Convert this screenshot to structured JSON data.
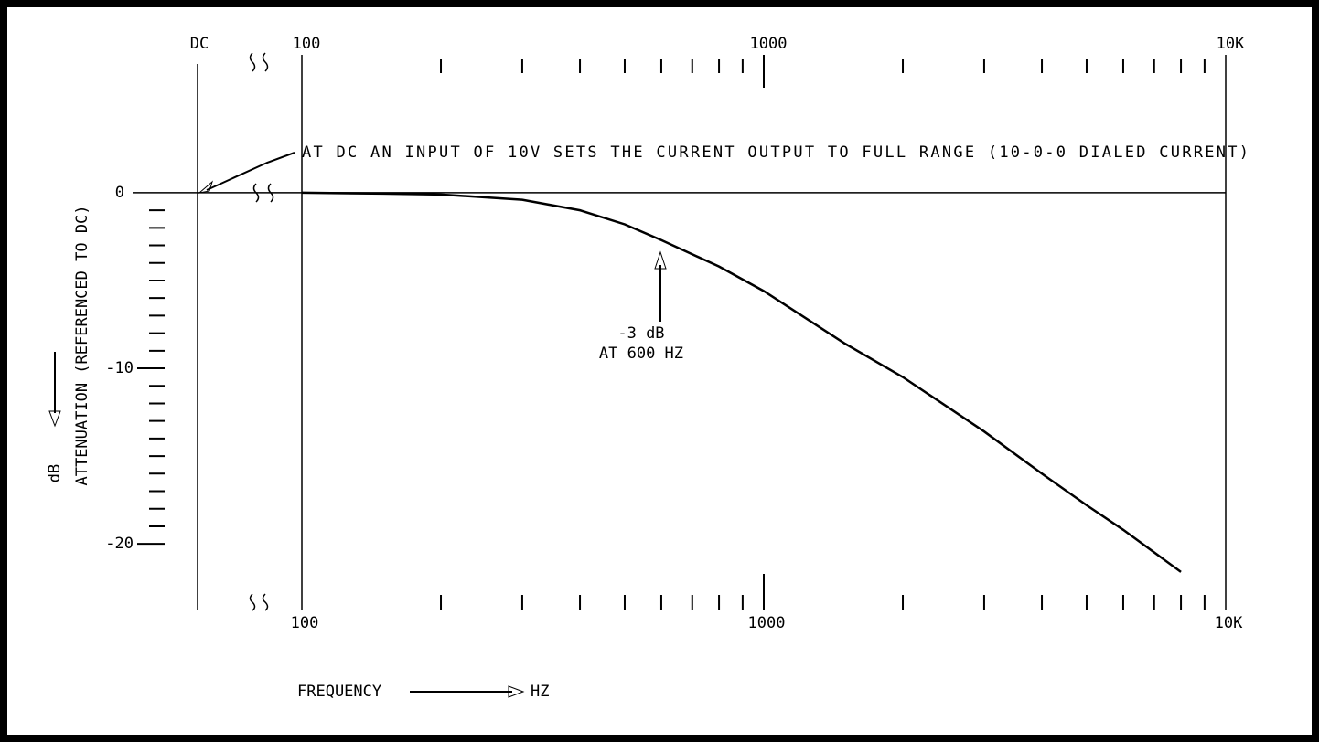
{
  "chart_data": {
    "type": "line",
    "xscale": "log",
    "xlim": [
      100,
      10000
    ],
    "ylim": [
      -24,
      9
    ],
    "xticks": [
      100,
      1000,
      {
        "value": 10000,
        "label": "10K"
      }
    ],
    "xticks_minor": [
      200,
      300,
      400,
      500,
      600,
      700,
      800,
      900,
      2000,
      3000,
      4000,
      5000,
      6000,
      7000,
      8000,
      9000
    ],
    "yticks": [
      0,
      -10,
      -20
    ],
    "yticks_minor": [
      -1,
      -2,
      -3,
      -4,
      -5,
      -6,
      -7,
      -8,
      -9,
      -11,
      -12,
      -13,
      -14,
      -15,
      -16,
      -17,
      -18,
      -19
    ],
    "dc_label": "DC",
    "xlabel": "FREQUENCY",
    "xlabel_unit": "HZ",
    "ylabel": "ATTENUATION (REFERENCED TO DC)",
    "ylabel_unit": "dB",
    "annotations": [
      {
        "text": "AT DC AN INPUT OF 10V SETS THE CURRENT OUTPUT TO FULL RANGE (10-0-0 DIALED CURRENT)"
      },
      {
        "lines": [
          "-3 dB",
          "AT 600 HZ"
        ],
        "x": 600,
        "y": -2.7
      }
    ],
    "x": [
      100,
      150,
      200,
      300,
      400,
      500,
      600,
      800,
      1000,
      1500,
      2000,
      3000,
      4000,
      5000,
      6000,
      8000
    ],
    "series": [
      {
        "color": "#000000",
        "values": [
          0,
          -0.05,
          -0.1,
          -0.4,
          -1.0,
          -1.8,
          -2.7,
          -4.2,
          -5.6,
          -8.6,
          -10.5,
          -13.6,
          -16.0,
          -17.8,
          -19.2,
          -21.6
        ]
      }
    ]
  }
}
